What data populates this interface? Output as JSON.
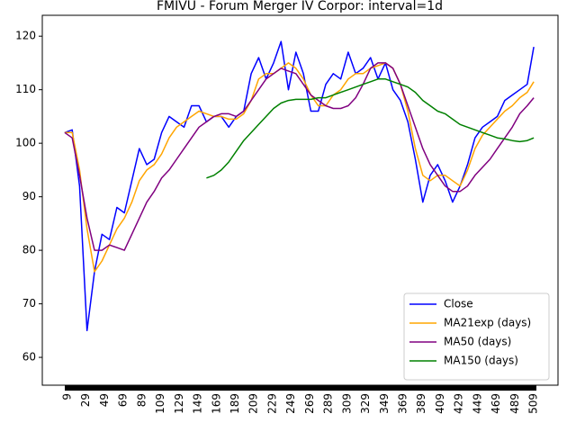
{
  "chart_data": {
    "type": "line",
    "title": "FMIVU - Forum Merger IV Corpor: interval=1d",
    "x": [
      6,
      14,
      22,
      30,
      38,
      46,
      54,
      62,
      70,
      78,
      86,
      94,
      102,
      110,
      118,
      126,
      134,
      142,
      150,
      158,
      166,
      174,
      182,
      190,
      198,
      206,
      214,
      222,
      230,
      238,
      246,
      254,
      262,
      270,
      278,
      286,
      294,
      302,
      310,
      318,
      326,
      334,
      342,
      350,
      358,
      366,
      374,
      382,
      390,
      398,
      406,
      414,
      422,
      430,
      438,
      446,
      454,
      462,
      470,
      478,
      486,
      494,
      502,
      509
    ],
    "xlim": [
      -18,
      535
    ],
    "xticks": [
      9,
      29,
      49,
      69,
      89,
      109,
      129,
      149,
      169,
      189,
      209,
      229,
      249,
      269,
      289,
      309,
      329,
      349,
      369,
      389,
      409,
      429,
      449,
      469,
      489,
      509
    ],
    "ylim": [
      54.8,
      123.9
    ],
    "yticks": [
      60,
      70,
      80,
      90,
      100,
      110,
      120
    ],
    "legend": "lower right",
    "series": [
      {
        "name": "Close",
        "color": "#0000ff",
        "values": [
          102,
          102.5,
          92,
          65,
          76,
          83,
          82,
          88,
          87,
          93,
          99,
          96,
          97,
          102,
          105,
          104,
          103,
          107,
          107,
          104,
          105,
          105,
          103,
          105,
          106,
          113,
          116,
          112,
          115,
          119,
          110,
          117,
          113,
          106,
          106,
          111,
          113,
          112,
          117,
          113,
          114,
          116,
          112,
          115,
          110,
          108,
          104,
          97,
          89,
          94,
          96,
          93,
          89,
          92,
          96,
          101,
          103,
          104,
          105,
          108,
          109,
          110,
          111,
          118
        ]
      },
      {
        "name": "MA21exp (days)",
        "color": "#ffa500",
        "values": [
          102,
          102,
          95,
          84,
          76,
          78,
          81,
          84,
          86,
          89,
          93,
          95,
          96,
          98,
          101,
          103,
          104,
          105,
          106,
          105.5,
          105,
          105,
          104.5,
          104.5,
          105.5,
          108,
          112,
          113,
          113,
          114,
          115,
          114,
          112,
          109,
          107,
          107,
          109,
          110,
          112,
          113,
          113,
          114,
          114.5,
          115,
          114,
          111,
          106,
          99,
          94,
          93,
          94,
          94,
          93,
          92,
          95,
          99,
          101.5,
          103,
          104.5,
          106,
          107,
          108.5,
          109.5,
          111.5
        ]
      },
      {
        "name": "MA50 (days)",
        "color": "#800080",
        "values": [
          102,
          101,
          94,
          86,
          80,
          80,
          81,
          80.5,
          80,
          83,
          86,
          89,
          91,
          93.5,
          95,
          97,
          99,
          101,
          103,
          104,
          105,
          105.5,
          105.5,
          105,
          106,
          108,
          110,
          112,
          113,
          114,
          113.5,
          113,
          111,
          109,
          108,
          107,
          106.5,
          106.5,
          107,
          108.5,
          111,
          114,
          115,
          115,
          114,
          111,
          107,
          103,
          99,
          96,
          94,
          92,
          91,
          91,
          92,
          94,
          95.5,
          97,
          99,
          101,
          103,
          105.5,
          107,
          108.5
        ]
      },
      {
        "name": "MA150 (days)",
        "color": "#008000",
        "values": [
          null,
          null,
          null,
          null,
          null,
          null,
          null,
          null,
          null,
          null,
          null,
          null,
          null,
          null,
          null,
          null,
          null,
          null,
          null,
          93.5,
          94,
          95,
          96.5,
          98.5,
          100.5,
          102,
          103.5,
          105,
          106.5,
          107.5,
          108,
          108.2,
          108.2,
          108.2,
          108.5,
          108.5,
          109,
          109.5,
          110,
          110.5,
          111,
          111.5,
          112,
          112,
          111.5,
          111,
          110.5,
          109.5,
          108,
          107,
          106,
          105.5,
          104.5,
          103.5,
          103,
          102.5,
          102,
          101.5,
          101,
          100.8,
          100.5,
          100.3,
          100.5,
          101
        ]
      }
    ]
  }
}
